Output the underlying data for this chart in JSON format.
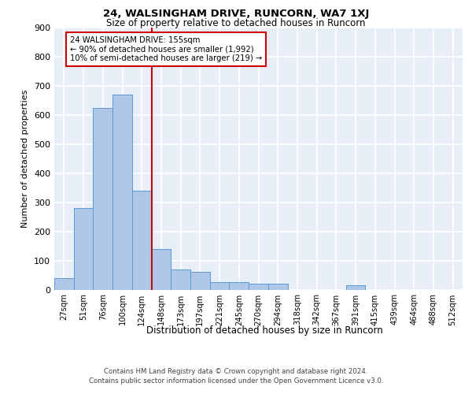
{
  "title1": "24, WALSINGHAM DRIVE, RUNCORN, WA7 1XJ",
  "title2": "Size of property relative to detached houses in Runcorn",
  "xlabel": "Distribution of detached houses by size in Runcorn",
  "ylabel": "Number of detached properties",
  "bar_labels": [
    "27sqm",
    "51sqm",
    "76sqm",
    "100sqm",
    "124sqm",
    "148sqm",
    "173sqm",
    "197sqm",
    "221sqm",
    "245sqm",
    "270sqm",
    "294sqm",
    "318sqm",
    "342sqm",
    "367sqm",
    "391sqm",
    "415sqm",
    "439sqm",
    "464sqm",
    "488sqm",
    "512sqm"
  ],
  "bar_values": [
    40,
    280,
    625,
    670,
    340,
    140,
    70,
    60,
    25,
    25,
    20,
    20,
    0,
    0,
    0,
    15,
    0,
    0,
    0,
    0,
    0
  ],
  "bar_color": "#aec6e8",
  "bar_edgecolor": "#5b9bd5",
  "vline_color": "#cc0000",
  "annotation_text": "24 WALSINGHAM DRIVE: 155sqm\n← 90% of detached houses are smaller (1,992)\n10% of semi-detached houses are larger (219) →",
  "annotation_box_color": "#ffffff",
  "annotation_box_edgecolor": "#cc0000",
  "ylim": [
    0,
    900
  ],
  "yticks": [
    0,
    100,
    200,
    300,
    400,
    500,
    600,
    700,
    800,
    900
  ],
  "footer1": "Contains HM Land Registry data © Crown copyright and database right 2024.",
  "footer2": "Contains public sector information licensed under the Open Government Licence v3.0.",
  "bg_color": "#e8eef7",
  "grid_color": "#ffffff"
}
